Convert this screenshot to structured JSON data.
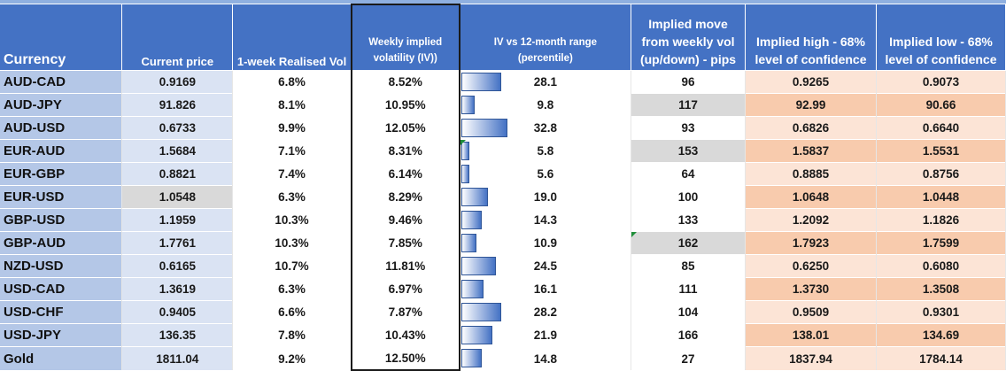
{
  "headers": {
    "currency": "Currency",
    "current_price": "Current price",
    "realised_vol": "1-week Realised Vol",
    "implied_vol_line1": "Weekly implied",
    "implied_vol_line2": "volatility (IV))",
    "iv_range_line1": "IV vs  12-month  range",
    "iv_range_line2": "(percentile)",
    "implied_move_line1": "Implied move",
    "implied_move_line2": "from weekly vol",
    "implied_move_line3": "(up/down) - pips",
    "implied_high_line1": "Implied high -  68%",
    "implied_high_line2": "level of confidence",
    "implied_low_line1": "Implied low -  68%",
    "implied_low_line2": "level of confidence"
  },
  "bar_scale_max_percentile": 100,
  "rows": [
    {
      "currency": "AUD-CAD",
      "price": "0.9169",
      "realised": "6.8%",
      "iv": "8.52%",
      "percentile": "28.1",
      "percentile_value": 28.1,
      "move": "96",
      "high": "0.9265",
      "low": "0.9073"
    },
    {
      "currency": "AUD-JPY",
      "price": "91.826",
      "realised": "8.1%",
      "iv": "10.95%",
      "percentile": "9.8",
      "percentile_value": 9.8,
      "move": "117",
      "high": "92.99",
      "low": "90.66"
    },
    {
      "currency": "AUD-USD",
      "price": "0.6733",
      "realised": "9.9%",
      "iv": "12.05%",
      "percentile": "32.8",
      "percentile_value": 32.8,
      "move": "93",
      "high": "0.6826",
      "low": "0.6640"
    },
    {
      "currency": "EUR-AUD",
      "price": "1.5684",
      "realised": "7.1%",
      "iv": "8.31%",
      "percentile": "5.8",
      "percentile_value": 5.8,
      "move": "153",
      "high": "1.5837",
      "low": "1.5531"
    },
    {
      "currency": "EUR-GBP",
      "price": "0.8821",
      "realised": "7.4%",
      "iv": "6.14%",
      "percentile": "5.6",
      "percentile_value": 5.6,
      "move": "64",
      "high": "0.8885",
      "low": "0.8756"
    },
    {
      "currency": "EUR-USD",
      "price": "1.0548",
      "realised": "6.3%",
      "iv": "8.29%",
      "percentile": "19.0",
      "percentile_value": 19.0,
      "move": "100",
      "high": "1.0648",
      "low": "1.0448"
    },
    {
      "currency": "GBP-USD",
      "price": "1.1959",
      "realised": "10.3%",
      "iv": "9.46%",
      "percentile": "14.3",
      "percentile_value": 14.3,
      "move": "133",
      "high": "1.2092",
      "low": "1.1826"
    },
    {
      "currency": "GBP-AUD",
      "price": "1.7761",
      "realised": "10.3%",
      "iv": "7.85%",
      "percentile": "10.9",
      "percentile_value": 10.9,
      "move": "162",
      "high": "1.7923",
      "low": "1.7599"
    },
    {
      "currency": "NZD-USD",
      "price": "0.6165",
      "realised": "10.7%",
      "iv": "11.81%",
      "percentile": "24.5",
      "percentile_value": 24.5,
      "move": "85",
      "high": "0.6250",
      "low": "0.6080"
    },
    {
      "currency": "USD-CAD",
      "price": "1.3619",
      "realised": "6.3%",
      "iv": "6.97%",
      "percentile": "16.1",
      "percentile_value": 16.1,
      "move": "111",
      "high": "1.3730",
      "low": "1.3508"
    },
    {
      "currency": "USD-CHF",
      "price": "0.9405",
      "realised": "6.6%",
      "iv": "7.87%",
      "percentile": "28.2",
      "percentile_value": 28.2,
      "move": "104",
      "high": "0.9509",
      "low": "0.9301"
    },
    {
      "currency": "USD-JPY",
      "price": "136.35",
      "realised": "7.8%",
      "iv": "10.43%",
      "percentile": "21.9",
      "percentile_value": 21.9,
      "move": "166",
      "high": "138.01",
      "low": "134.69"
    },
    {
      "currency": "Gold",
      "price": "1811.04",
      "realised": "9.2%",
      "iv": "12.50%",
      "percentile": "14.8",
      "percentile_value": 14.8,
      "move": "27",
      "high": "1837.94",
      "low": "1784.14"
    }
  ],
  "colors": {
    "header_bg": "#4472c4",
    "currency_col_bg": "#b4c7e7",
    "price_col_bg": "#dae3f3",
    "highlight_grey": "#d9d9d9",
    "high_low_light": "#fce4d6",
    "high_low_dark": "#f8cbad",
    "bar_dark": "#4472c4"
  }
}
